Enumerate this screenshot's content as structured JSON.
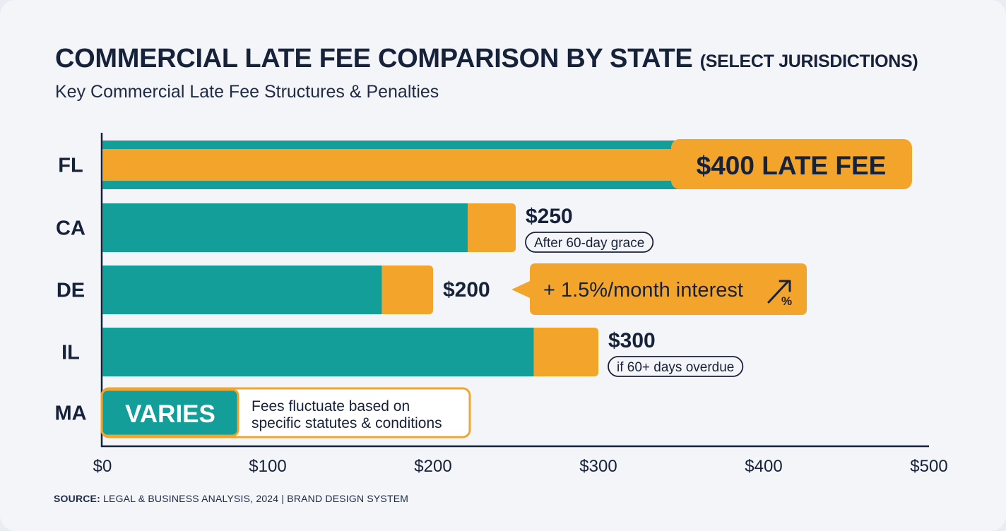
{
  "header": {
    "title": "COMMERCIAL LATE FEE COMPARISON BY STATE",
    "title_suffix": "(SELECT JURISDICTIONS)",
    "subtitle": "Key Commercial Late Fee Structures & Penalties"
  },
  "footer": {
    "source_label": "SOURCE:",
    "source_text": "LEGAL & BUSINESS ANALYSIS, 2024 | BRAND DESIGN SYSTEM"
  },
  "colors": {
    "teal": "#139e9a",
    "orange": "#f2a52a",
    "navy": "#16213a",
    "white": "#ffffff"
  },
  "chart_data": {
    "type": "bar",
    "orientation": "horizontal",
    "stacked": true,
    "title": "COMMERCIAL LATE FEE COMPARISON BY STATE (SELECT JURISDICTIONS)",
    "subtitle": "Key Commercial Late Fee Structures & Penalties",
    "xlim": [
      0,
      500
    ],
    "xticks": [
      0,
      100,
      200,
      300,
      400,
      500
    ],
    "xtick_labels": [
      "$0",
      "$100",
      "$200",
      "$300",
      "$400",
      "$500"
    ],
    "grid": false,
    "categories": [
      "FL",
      "CA",
      "DE",
      "IL",
      "MA"
    ],
    "series": [
      {
        "color": "teal",
        "values": [
          400,
          221,
          169,
          261,
          null
        ]
      },
      {
        "color": "orange",
        "values": [
          0,
          29,
          31,
          39,
          null
        ]
      }
    ],
    "totals": [
      400,
      250,
      200,
      300,
      null
    ],
    "annotations": [
      {
        "state": "FL",
        "label": "$400 LATE FEE",
        "style": "callout"
      },
      {
        "state": "CA",
        "value_label": "$250",
        "note": "After 60-day grace"
      },
      {
        "state": "DE",
        "value_label": "$200",
        "note": "+ 1.5%/month interest",
        "style": "callout",
        "icon": "percent-trend-up-icon"
      },
      {
        "state": "IL",
        "value_label": "$300",
        "note": "if 60+ days overdue"
      },
      {
        "state": "MA",
        "badge": "VARIES",
        "note_lines": [
          "Fees fluctuate based on",
          "specific statutes & conditions"
        ]
      }
    ]
  }
}
